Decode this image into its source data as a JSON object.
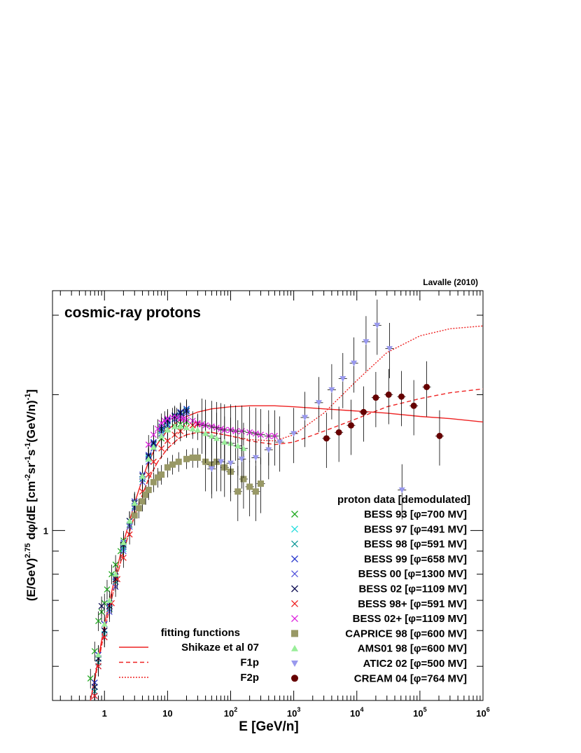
{
  "chart_data": {
    "type": "scatter",
    "title": "cosmic-ray protons",
    "credit": "Lavalle (2010)",
    "xlabel": "E [GeV/n]",
    "ylabel": "(E/GeV)^2.75 dφ/dE [cm^-2 sr^-1 s^-1 (GeV/n)^-1]",
    "ylabel_parts": {
      "a": "(E/GeV)",
      "a_sup": "2.75",
      "b": " dφ/dE [cm",
      "b_sup": "-2",
      "c": "sr",
      "c_sup": "-1",
      "d": "s",
      "d_sup": "-1",
      "e": "(GeV/n)",
      "e_sup": "-1",
      "f": "]"
    },
    "xscale": "log",
    "yscale": "log",
    "xlim": [
      0.15,
      1000000
    ],
    "ylim": [
      0.42,
      3.4
    ],
    "x_ticks": [
      {
        "v": 1,
        "base": "1",
        "exp": ""
      },
      {
        "v": 10,
        "base": "10",
        "exp": ""
      },
      {
        "v": 100,
        "base": "10",
        "exp": "2"
      },
      {
        "v": 1000,
        "base": "10",
        "exp": "3"
      },
      {
        "v": 10000,
        "base": "10",
        "exp": "4"
      },
      {
        "v": 100000,
        "base": "10",
        "exp": "5"
      },
      {
        "v": 1000000,
        "base": "10",
        "exp": "6"
      }
    ],
    "y_ticks": [
      {
        "v": 1,
        "label": "1"
      }
    ],
    "legend_data": {
      "title": "proton data [demodulated]",
      "placement": "bottom-right",
      "entries": [
        {
          "name": "BESS 93 [φ=700 MV]",
          "marker": "x",
          "color": "#22aa22"
        },
        {
          "name": "BESS 97 [φ=491 MV]",
          "marker": "x",
          "color": "#22dddd"
        },
        {
          "name": "BESS 98 [φ=591 MV]",
          "marker": "x",
          "color": "#119999"
        },
        {
          "name": "BESS 99 [φ=658 MV]",
          "marker": "x",
          "color": "#2233cc"
        },
        {
          "name": "BESS 00 [φ=1300 MV]",
          "marker": "x",
          "color": "#5555dd"
        },
        {
          "name": "BESS 02 [φ=1109 MV]",
          "marker": "x",
          "color": "#111155"
        },
        {
          "name": "BESS 98+ [φ=591 MV]",
          "marker": "x",
          "color": "#ee2222"
        },
        {
          "name": "BESS 02+ [φ=1109 MV]",
          "marker": "x",
          "color": "#dd22dd"
        },
        {
          "name": "CAPRICE 98 [φ=600 MV]",
          "marker": "square",
          "color": "#999966"
        },
        {
          "name": "AMS01 98 [φ=600 MV]",
          "marker": "triangle",
          "color": "#99ee99"
        },
        {
          "name": "ATIC2 02 [φ=500 MV]",
          "marker": "triangle-down",
          "color": "#9999ee"
        },
        {
          "name": "CREAM 04 [φ=764 MV]",
          "marker": "circle",
          "color": "#660000"
        }
      ]
    },
    "legend_fit": {
      "title": "fitting functions",
      "placement": "bottom-left",
      "entries": [
        {
          "name": "Shikaze et al 07",
          "style": "solid",
          "color": "#ee2222"
        },
        {
          "name": "F1p",
          "style": "dashed",
          "color": "#ee2222"
        },
        {
          "name": "F2p",
          "style": "dotted",
          "color": "#ee2222"
        }
      ]
    },
    "fit_curves": [
      {
        "name": "Shikaze et al 07",
        "style": "solid",
        "color": "#ee2222",
        "x": [
          0.6,
          0.8,
          1,
          1.5,
          2,
          3,
          4,
          5,
          7,
          10,
          15,
          20,
          30,
          50,
          100,
          200,
          500,
          1000,
          3000,
          10000,
          30000,
          100000,
          300000,
          1000000
        ],
        "y": [
          0.42,
          0.52,
          0.62,
          0.8,
          0.94,
          1.15,
          1.3,
          1.42,
          1.56,
          1.67,
          1.75,
          1.79,
          1.83,
          1.86,
          1.88,
          1.89,
          1.89,
          1.88,
          1.86,
          1.84,
          1.82,
          1.79,
          1.77,
          1.74
        ]
      },
      {
        "name": "F1p",
        "style": "dashed",
        "color": "#ee2222",
        "x": [
          0.6,
          0.8,
          1,
          1.5,
          2,
          3,
          4,
          5,
          7,
          10,
          15,
          20,
          30,
          50,
          100,
          200,
          500,
          1000,
          3000,
          10000,
          30000,
          100000,
          300000,
          1000000
        ],
        "y": [
          0.42,
          0.51,
          0.6,
          0.77,
          0.9,
          1.08,
          1.2,
          1.3,
          1.42,
          1.52,
          1.6,
          1.63,
          1.65,
          1.65,
          1.62,
          1.58,
          1.55,
          1.57,
          1.66,
          1.77,
          1.88,
          1.96,
          2.02,
          2.06
        ]
      },
      {
        "name": "F2p",
        "style": "dotted",
        "color": "#ee2222",
        "x": [
          0.6,
          0.8,
          1,
          1.5,
          2,
          3,
          4,
          5,
          7,
          10,
          15,
          20,
          30,
          50,
          100,
          200,
          500,
          1000,
          3000,
          10000,
          30000,
          100000,
          300000,
          1000000
        ],
        "y": [
          0.42,
          0.51,
          0.6,
          0.77,
          0.9,
          1.08,
          1.2,
          1.3,
          1.42,
          1.52,
          1.6,
          1.63,
          1.65,
          1.65,
          1.62,
          1.59,
          1.58,
          1.63,
          1.82,
          2.15,
          2.48,
          2.7,
          2.8,
          2.84
        ]
      }
    ],
    "series": [
      {
        "name": "BESS 93 [φ=700 MV]",
        "marker": "x",
        "color": "#22aa22",
        "x": [
          0.6,
          0.7,
          0.8,
          0.9,
          1.0,
          1.1,
          1.3,
          1.5,
          1.8,
          2.0,
          2.5,
          3.0,
          4.0,
          5.0,
          6.0,
          8.0,
          10.0,
          13.0,
          16.0,
          20.0
        ],
        "y": [
          0.47,
          0.54,
          0.63,
          0.66,
          0.69,
          0.74,
          0.8,
          0.84,
          0.9,
          0.95,
          1.05,
          1.15,
          1.3,
          1.45,
          1.52,
          1.6,
          1.68,
          1.7,
          1.72,
          1.74
        ]
      },
      {
        "name": "BESS 97 [φ=491 MV]",
        "marker": "x",
        "color": "#22dddd",
        "x": [
          0.7,
          0.8,
          1.0,
          1.2,
          1.5,
          2.0,
          2.5,
          3.0,
          4.0,
          5.0,
          6.0,
          8.0,
          10.0,
          13.0,
          16.0,
          20.0
        ],
        "y": [
          0.45,
          0.52,
          0.59,
          0.67,
          0.77,
          0.91,
          1.02,
          1.12,
          1.3,
          1.45,
          1.55,
          1.67,
          1.74,
          1.79,
          1.82,
          1.85
        ]
      },
      {
        "name": "BESS 98 [φ=591 MV]",
        "marker": "x",
        "color": "#119999",
        "x": [
          0.7,
          0.8,
          1.0,
          1.2,
          1.5,
          2.0,
          2.5,
          3.0,
          4.0,
          5.0,
          6.0,
          8.0,
          10.0,
          13.0,
          16.0,
          20.0
        ],
        "y": [
          0.44,
          0.51,
          0.6,
          0.67,
          0.77,
          0.92,
          1.03,
          1.13,
          1.3,
          1.44,
          1.55,
          1.66,
          1.72,
          1.77,
          1.8,
          1.82
        ]
      },
      {
        "name": "BESS 99 [φ=658 MV]",
        "marker": "x",
        "color": "#2233cc",
        "x": [
          0.7,
          0.8,
          1.0,
          1.2,
          1.5,
          2.0,
          2.5,
          3.0,
          4.0,
          5.0,
          6.0,
          8.0,
          10.0,
          13.0,
          16.0,
          20.0
        ],
        "y": [
          0.46,
          0.53,
          0.62,
          0.69,
          0.79,
          0.94,
          1.05,
          1.16,
          1.33,
          1.47,
          1.57,
          1.7,
          1.76,
          1.8,
          1.83,
          1.86
        ]
      },
      {
        "name": "BESS 00 [φ=1300 MV]",
        "marker": "x",
        "color": "#5555dd",
        "x": [
          0.7,
          0.8,
          1.0,
          1.2,
          1.5,
          2.0,
          2.5,
          3.0,
          4.0,
          5.0,
          6.0,
          8.0,
          10.0,
          13.0,
          16.0,
          20.0
        ],
        "y": [
          0.43,
          0.5,
          0.58,
          0.66,
          0.75,
          0.9,
          1.02,
          1.12,
          1.28,
          1.42,
          1.52,
          1.64,
          1.71,
          1.76,
          1.79,
          1.82
        ]
      },
      {
        "name": "BESS 02 [φ=1109 MV]",
        "marker": "x",
        "color": "#111155",
        "x": [
          0.7,
          0.8,
          0.9,
          1.0,
          1.2,
          1.5,
          2.0,
          2.5,
          3.0,
          4.0,
          5.0,
          6.0,
          8.0,
          10.0,
          13.0,
          16.0,
          20.0
        ],
        "y": [
          0.45,
          0.52,
          0.68,
          0.6,
          0.68,
          0.78,
          0.93,
          1.05,
          1.15,
          1.32,
          1.46,
          1.56,
          1.68,
          1.75,
          1.79,
          1.82,
          1.84
        ]
      },
      {
        "name": "BESS 98+ [φ=591 MV]",
        "marker": "x",
        "color": "#ee2222",
        "x": [
          0.7,
          0.8,
          1.0,
          1.3,
          1.6,
          2.0,
          2.5,
          3.0,
          4.0,
          5.0,
          6.0,
          8.0,
          10.0,
          13.0,
          16.0,
          20.0,
          25.0,
          30.0
        ],
        "y": [
          0.43,
          0.5,
          0.58,
          0.69,
          0.78,
          0.87,
          0.98,
          1.08,
          1.22,
          1.33,
          1.42,
          1.52,
          1.58,
          1.63,
          1.66,
          1.69,
          1.71,
          1.72
        ]
      },
      {
        "name": "BESS 02+ [φ=1109 MV]",
        "marker": "x",
        "color": "#dd22dd",
        "x": [
          5.0,
          6.0,
          7.0,
          8.0,
          9.0,
          10.0,
          12.0,
          14.0,
          16.0,
          18.0,
          20.0,
          25.0,
          30.0,
          35.0,
          40.0,
          50.0,
          60.0,
          70.0,
          80.0,
          100.0,
          120.0,
          150.0,
          200.0,
          250.0,
          300.0,
          400.0,
          500.0
        ],
        "y": [
          1.55,
          1.63,
          1.68,
          1.73,
          1.75,
          1.77,
          1.78,
          1.78,
          1.77,
          1.77,
          1.76,
          1.75,
          1.73,
          1.72,
          1.71,
          1.7,
          1.69,
          1.68,
          1.67,
          1.67,
          1.66,
          1.66,
          1.65,
          1.64,
          1.63,
          1.62,
          1.62
        ]
      },
      {
        "name": "CAPRICE 98 [φ=600 MV]",
        "marker": "square",
        "color": "#999966",
        "x": [
          3.0,
          3.5,
          4.0,
          4.5,
          5.0,
          6.0,
          7.0,
          8.0,
          10.0,
          12.0,
          15.0,
          20.0,
          25.0,
          30.0,
          40.0,
          50.0,
          60.0,
          80.0,
          100.0,
          130.0,
          160.0,
          200.0,
          250.0,
          300.0
        ],
        "y": [
          1.08,
          1.12,
          1.16,
          1.2,
          1.23,
          1.28,
          1.31,
          1.33,
          1.38,
          1.4,
          1.42,
          1.44,
          1.45,
          1.45,
          1.42,
          1.4,
          1.42,
          1.38,
          1.35,
          1.22,
          1.3,
          1.25,
          1.22,
          1.27
        ]
      },
      {
        "name": "AMS01 98 [φ=600 MV]",
        "marker": "triangle",
        "color": "#99ee99",
        "x": [
          0.8,
          1.0,
          1.2,
          1.5,
          2.0,
          2.5,
          3.0,
          4.0,
          5.0,
          6.0,
          8.0,
          10.0,
          13.0,
          16.0,
          20.0,
          25.0,
          30.0,
          40.0,
          50.0,
          60.0,
          80.0,
          100.0,
          130.0,
          160.0
        ],
        "y": [
          0.53,
          0.62,
          0.7,
          0.8,
          0.94,
          1.05,
          1.15,
          1.32,
          1.44,
          1.53,
          1.62,
          1.67,
          1.7,
          1.7,
          1.69,
          1.68,
          1.67,
          1.64,
          1.62,
          1.6,
          1.57,
          1.56,
          1.54,
          1.52
        ]
      },
      {
        "name": "ATIC2 02 [φ=500 MV]",
        "marker": "triangle-down",
        "color": "#9999ee",
        "x": [
          50.0,
          70.0,
          100.0,
          150.0,
          250.0,
          400.0,
          600.0,
          1000.0,
          1500.0,
          2500.0,
          4000.0,
          6000.0,
          9000.0,
          14000.0,
          21000.0,
          33000.0,
          52000.0
        ],
        "y": [
          1.37,
          1.42,
          1.41,
          1.44,
          1.45,
          1.51,
          1.57,
          1.64,
          1.78,
          1.92,
          2.05,
          2.17,
          2.35,
          2.62,
          2.85,
          2.53,
          1.23
        ]
      },
      {
        "name": "CREAM 04 [φ=764 MV]",
        "marker": "circle",
        "color": "#660000",
        "x": [
          3300.0,
          5200.0,
          8100.0,
          12800.0,
          20000.0,
          32000.0,
          51000.0,
          80000.0,
          128000.0,
          205000.0
        ],
        "y": [
          1.6,
          1.65,
          1.71,
          1.83,
          1.97,
          2.0,
          1.98,
          1.89,
          2.08,
          1.62
        ]
      }
    ]
  }
}
